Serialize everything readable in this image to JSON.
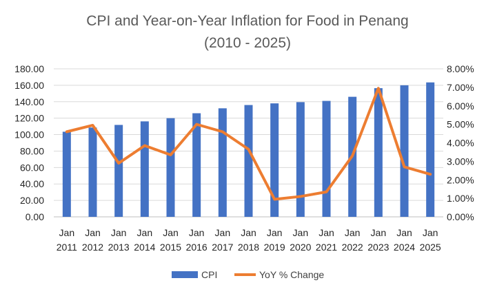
{
  "chart_data": {
    "type": "bar+line",
    "title": "CPI and Year-on-Year Inflation for Food in Penang",
    "subtitle": "(2010 - 2025)",
    "categories": [
      "Jan 2011",
      "Jan 2012",
      "Jan 2013",
      "Jan 2014",
      "Jan 2015",
      "Jan 2016",
      "Jan 2017",
      "Jan 2018",
      "Jan 2019",
      "Jan 2020",
      "Jan 2021",
      "Jan 2022",
      "Jan 2023",
      "Jan 2024",
      "Jan 2025"
    ],
    "category_lines": [
      [
        "Jan",
        "2011"
      ],
      [
        "Jan",
        "2012"
      ],
      [
        "Jan",
        "2013"
      ],
      [
        "Jan",
        "2014"
      ],
      [
        "Jan",
        "2015"
      ],
      [
        "Jan",
        "2016"
      ],
      [
        "Jan",
        "2017"
      ],
      [
        "Jan",
        "2018"
      ],
      [
        "Jan",
        "2019"
      ],
      [
        "Jan",
        "2020"
      ],
      [
        "Jan",
        "2021"
      ],
      [
        "Jan",
        "2022"
      ],
      [
        "Jan",
        "2023"
      ],
      [
        "Jan",
        "2024"
      ],
      [
        "Jan",
        "2025"
      ]
    ],
    "series": [
      {
        "name": "CPI",
        "type": "bar",
        "axis": "left",
        "color": "#4472C4",
        "values": [
          103.5,
          108.6,
          111.8,
          116.1,
          120.0,
          126.0,
          132.0,
          136.0,
          138.0,
          139.5,
          141.0,
          146.0,
          156.5,
          160.0,
          163.5
        ]
      },
      {
        "name": "YoY % Change",
        "type": "line",
        "axis": "right",
        "color": "#ED7D31",
        "values": [
          4.6,
          4.95,
          2.9,
          3.85,
          3.35,
          5.0,
          4.6,
          3.65,
          0.95,
          1.1,
          1.35,
          3.3,
          6.95,
          2.7,
          2.3
        ]
      }
    ],
    "left_axis": {
      "min": 0,
      "max": 180,
      "step": 20,
      "tick_labels": [
        "0.00",
        "20.00",
        "40.00",
        "60.00",
        "80.00",
        "100.00",
        "120.00",
        "140.00",
        "160.00",
        "180.00"
      ]
    },
    "right_axis": {
      "min": 0,
      "max": 8,
      "step": 1,
      "tick_labels": [
        "0.00%",
        "1.00%",
        "2.00%",
        "3.00%",
        "4.00%",
        "5.00%",
        "6.00%",
        "7.00%",
        "8.00%"
      ]
    },
    "grid": true,
    "legend_position": "bottom"
  }
}
